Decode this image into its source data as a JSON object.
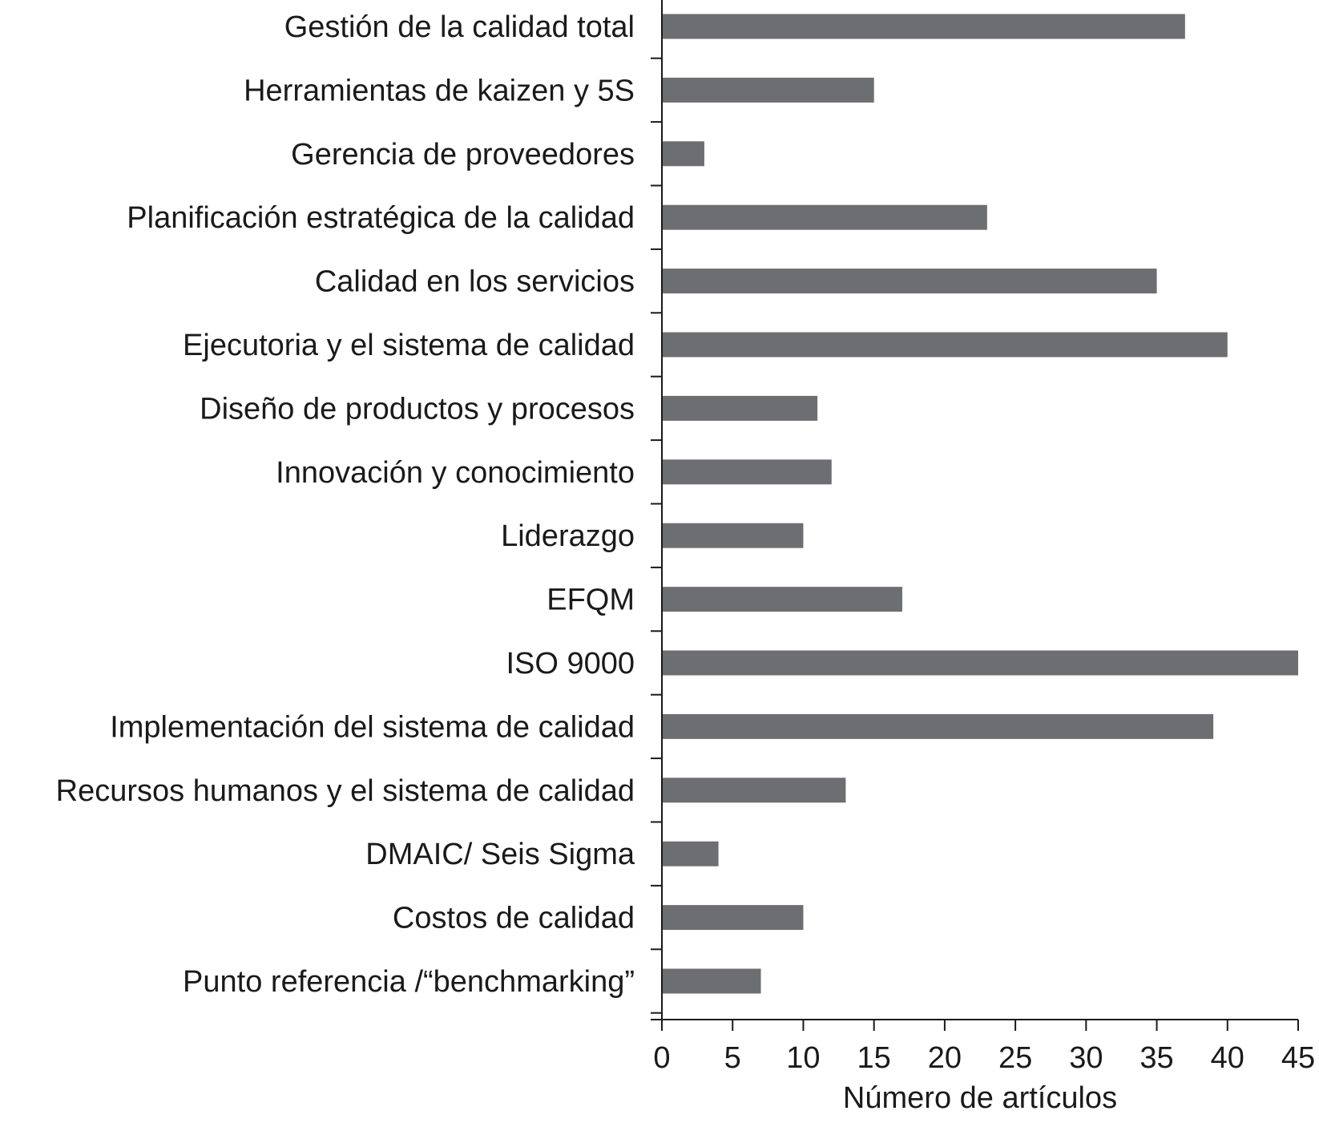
{
  "chart_data": {
    "type": "bar",
    "orientation": "horizontal",
    "categories": [
      "Gestión de la calidad total",
      "Herramientas de kaizen y 5S",
      "Gerencia de proveedores",
      "Planificación estratégica de la calidad",
      "Calidad en los servicios",
      "Ejecutoria y el sistema de calidad",
      "Diseño de productos y procesos",
      "Innovación y conocimiento",
      "Liderazgo",
      "EFQM",
      "ISO 9000",
      "Implementación del sistema de calidad",
      "Recursos humanos y el sistema de calidad",
      "DMAIC/ Seis Sigma",
      "Costos de calidad",
      "Punto referencia /“benchmarking”"
    ],
    "values": [
      37,
      15,
      3,
      23,
      35,
      40,
      11,
      12,
      10,
      17,
      45,
      39,
      13,
      4,
      10,
      7
    ],
    "xlabel": "Número de artículos",
    "ylabel": "",
    "title": "",
    "xlim": [
      0,
      45
    ],
    "xticks": [
      0,
      5,
      10,
      15,
      20,
      25,
      30,
      35,
      40,
      45
    ],
    "grid": false,
    "bar_color": "#6d6e71"
  }
}
